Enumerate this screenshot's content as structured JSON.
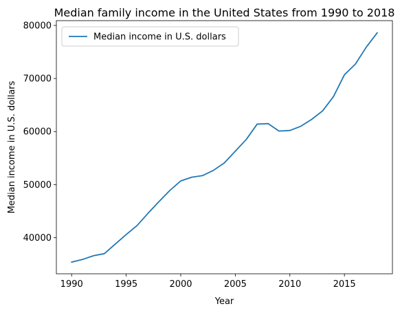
{
  "chart_data": {
    "type": "line",
    "title": "Median family income in the United States from 1990 to 2018",
    "xlabel": "Year",
    "ylabel": "Median income in U.S. dollars",
    "xlim": [
      1988.6,
      2019.4
    ],
    "ylim": [
      33200,
      80900
    ],
    "xticks": [
      1990,
      1995,
      2000,
      2005,
      2010,
      2015
    ],
    "yticks": [
      40000,
      50000,
      60000,
      70000,
      80000
    ],
    "grid": false,
    "legend_position": "upper-left",
    "colors": {
      "series": "#1f77b4"
    },
    "series": [
      {
        "name": "Median income in U.S. dollars",
        "x": [
          1990,
          1991,
          1992,
          1993,
          1994,
          1995,
          1996,
          1997,
          1998,
          1999,
          2000,
          2001,
          2002,
          2003,
          2004,
          2005,
          2006,
          2007,
          2008,
          2009,
          2010,
          2011,
          2012,
          2013,
          2014,
          2015,
          2016,
          2017,
          2018
        ],
        "y": [
          35400,
          35900,
          36600,
          37000,
          38800,
          40600,
          42300,
          44600,
          46800,
          48900,
          50700,
          51400,
          51700,
          52700,
          54100,
          56300,
          58500,
          61400,
          61500,
          60100,
          60200,
          61000,
          62300,
          63900,
          66600,
          70700,
          72700,
          75900,
          78600
        ]
      }
    ]
  }
}
